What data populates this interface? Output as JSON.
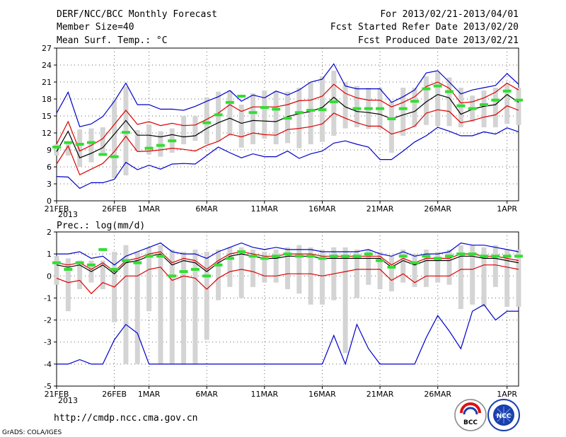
{
  "header": {
    "title": "DERF/NCC/BCC Monthly Forecast",
    "member_size": "Member Size=40",
    "variable": "Mean Surf. Temp.: °C",
    "period": "For 2013/02/21-2013/04/01",
    "started": "Fcst Started Refer Date 2013/02/20",
    "produced": "Fcst Produced Date 2013/02/21"
  },
  "footer": {
    "url": "http://cmdp.ncc.cma.gov.cn",
    "grads": "GrADS: COLA/IGES",
    "logo1": "BCC",
    "logo2": "NCC"
  },
  "colors": {
    "envelope": "#0000cc",
    "spread": "#dd0000",
    "mean": "#000000",
    "box": "#d4d4d4",
    "median": "#33dd33"
  },
  "chart_data": [
    {
      "type": "line",
      "title": "Mean Surf. Temp.: °C",
      "ylim": [
        0,
        27
      ],
      "yticks": [
        0,
        3,
        6,
        9,
        12,
        15,
        18,
        21,
        24,
        27
      ],
      "xlim": [
        0,
        40
      ],
      "xticks": [
        {
          "x": 0,
          "label": "21FEB"
        },
        {
          "x": 5,
          "label": "26FEB"
        },
        {
          "x": 8,
          "label": "1MAR"
        },
        {
          "x": 13,
          "label": "6MAR"
        },
        {
          "x": 18,
          "label": "11MAR"
        },
        {
          "x": 23,
          "label": "16MAR"
        },
        {
          "x": 28,
          "label": "21MAR"
        },
        {
          "x": 33,
          "label": "26MAR"
        },
        {
          "x": 39,
          "label": "1APR"
        }
      ],
      "xsublabel": "2013",
      "max": [
        15.5,
        19.2,
        13.1,
        13.6,
        14.9,
        17.6,
        20.8,
        17,
        17,
        16.2,
        16.2,
        16,
        16.7,
        17.6,
        18.4,
        19.5,
        17.6,
        18.7,
        18.2,
        19.4,
        18.7,
        19.6,
        21,
        21.5,
        24.2,
        20.3,
        19.8,
        19.8,
        19.8,
        17.4,
        18.4,
        19.6,
        22.6,
        23,
        21,
        18.9,
        19.6,
        20,
        20.4,
        22.5,
        20.6
      ],
      "upper": [
        10,
        14,
        8.8,
        9.8,
        11,
        13.5,
        16,
        13.5,
        14,
        13.3,
        13.7,
        13.3,
        13.4,
        14.4,
        15.5,
        17,
        15.8,
        16.6,
        16.6,
        16.6,
        17,
        17.7,
        17.8,
        18.5,
        20.6,
        19,
        18.2,
        17.8,
        17.8,
        16.6,
        17.4,
        18.4,
        20.2,
        21,
        19.9,
        17.3,
        17.5,
        18.2,
        19.2,
        20.8,
        19.6
      ],
      "mean": [
        8.7,
        12.3,
        7.6,
        8.4,
        9.4,
        11.8,
        14.2,
        11.6,
        11.6,
        11.3,
        11.7,
        11.3,
        11.5,
        12.8,
        13.8,
        14.6,
        13.7,
        14.2,
        14.1,
        14,
        14.9,
        15.4,
        15.8,
        16.5,
        18.3,
        16.6,
        15.8,
        15.6,
        15.3,
        14.5,
        15.2,
        15.8,
        17.5,
        18.8,
        18.2,
        15.3,
        16.2,
        16.7,
        17,
        18.8,
        17.4
      ],
      "lower": [
        6.5,
        9.7,
        4.6,
        5.6,
        6.6,
        8.7,
        11.4,
        8.7,
        8.8,
        9,
        9.3,
        9.1,
        8.8,
        9.8,
        10.5,
        11.8,
        11.3,
        12,
        11.7,
        11.6,
        12.6,
        12.8,
        13.1,
        13.6,
        15.5,
        14.6,
        13.8,
        13.2,
        13.2,
        11.8,
        12.4,
        13.2,
        15.5,
        16.1,
        15.8,
        13.8,
        14.2,
        14.8,
        15.2,
        16.8,
        16
      ],
      "min": [
        4.3,
        4.2,
        2.2,
        3.2,
        3.2,
        3.8,
        6.8,
        5.5,
        6.3,
        5.6,
        6.5,
        6.6,
        6.5,
        8,
        9.5,
        8.5,
        7.6,
        8.3,
        7.8,
        7.8,
        8.8,
        7.5,
        8.3,
        8.8,
        10.2,
        10.6,
        10,
        9.5,
        7.3,
        7.3,
        8.8,
        10.4,
        11.5,
        13,
        12.3,
        11.5,
        11.5,
        12.2,
        11.8,
        12.9,
        12.2
      ],
      "box_high": [
        10,
        10.5,
        12.6,
        12.8,
        13,
        17.8,
        20.2,
        12.5,
        13.5,
        12.3,
        12.8,
        15,
        15,
        18.3,
        19.3,
        19.5,
        17,
        19,
        19.5,
        19.4,
        19.3,
        20,
        21,
        22,
        23,
        21,
        20.3,
        20,
        20,
        17.5,
        20,
        20,
        22,
        22.8,
        21.8,
        20,
        18.6,
        19.5,
        20,
        20.6,
        20
      ],
      "box_low": [
        8,
        8,
        6,
        6.8,
        8.5,
        4,
        4.5,
        8.8,
        8.2,
        7.8,
        8.5,
        10,
        10.6,
        10,
        10.5,
        11.5,
        9.4,
        10,
        11,
        10,
        10.2,
        9.3,
        10,
        10.4,
        11.5,
        12.8,
        13,
        12.7,
        12.7,
        8.5,
        11.5,
        13,
        13.4,
        13.2,
        13.2,
        13,
        14,
        13,
        13,
        13.6,
        13.4
      ],
      "median": [
        9.5,
        10.3,
        10,
        10.3,
        8.2,
        7.8,
        12.1,
        null,
        9.3,
        9.8,
        10.6,
        null,
        null,
        13.8,
        15.2,
        17.4,
        18.5,
        15.6,
        16.5,
        16.2,
        14.6,
        15.6,
        16,
        16.1,
        17.5,
        null,
        16.3,
        16.3,
        16.3,
        14.5,
        16.3,
        17.6,
        19.8,
        20.3,
        19.3,
        16.8,
        16.3,
        17,
        17.8,
        19.4,
        17.8
      ]
    },
    {
      "type": "line",
      "title": "Prec.: log(mm/d)",
      "ylim": [
        -5,
        2
      ],
      "yticks": [
        -5,
        -4,
        -3,
        -2,
        -1,
        0,
        1,
        2
      ],
      "xlim": [
        0,
        40
      ],
      "xticks": [
        {
          "x": 0,
          "label": "21FEB"
        },
        {
          "x": 5,
          "label": "26FEB"
        },
        {
          "x": 8,
          "label": "1MAR"
        },
        {
          "x": 13,
          "label": "6MAR"
        },
        {
          "x": 18,
          "label": "11MAR"
        },
        {
          "x": 23,
          "label": "16MAR"
        },
        {
          "x": 28,
          "label": "21MAR"
        },
        {
          "x": 33,
          "label": "26MAR"
        },
        {
          "x": 39,
          "label": "1APR"
        }
      ],
      "xsublabel": "2013",
      "max": [
        1,
        1,
        1.1,
        0.8,
        0.9,
        0.5,
        0.9,
        1.1,
        1.3,
        1.5,
        1.1,
        1,
        1,
        0.8,
        1.1,
        1.3,
        1.5,
        1.3,
        1.2,
        1.3,
        1.2,
        1.2,
        1.2,
        1.1,
        1.1,
        1.1,
        1.1,
        1.2,
        1,
        0.9,
        1.1,
        0.9,
        1,
        1,
        1.1,
        1.5,
        1.4,
        1.4,
        1.3,
        1.2,
        1.1
      ],
      "upper": [
        0.6,
        0.5,
        0.6,
        0.3,
        0.6,
        0.2,
        0.7,
        0.8,
        1,
        1.1,
        0.6,
        0.8,
        0.7,
        0.3,
        0.7,
        1,
        1.1,
        1,
        0.9,
        0.9,
        1,
        1,
        1,
        0.9,
        0.9,
        0.9,
        0.9,
        0.9,
        0.9,
        0.5,
        0.8,
        0.6,
        0.8,
        0.8,
        0.8,
        1,
        1,
        0.9,
        0.9,
        0.8,
        0.7
      ],
      "mean": [
        0.5,
        0.4,
        0.5,
        0.2,
        0.5,
        0.1,
        0.6,
        0.7,
        0.9,
        1,
        0.5,
        0.7,
        0.6,
        0.2,
        0.6,
        0.9,
        1,
        0.9,
        0.8,
        0.8,
        0.9,
        0.9,
        0.9,
        0.8,
        0.8,
        0.8,
        0.8,
        0.8,
        0.8,
        0.4,
        0.7,
        0.5,
        0.7,
        0.7,
        0.7,
        0.9,
        0.9,
        0.8,
        0.8,
        0.7,
        0.6
      ],
      "lower": [
        -0.1,
        -0.3,
        -0.2,
        -0.8,
        -0.3,
        -0.5,
        0,
        0,
        0.3,
        0.4,
        -0.2,
        0,
        -0.1,
        -0.6,
        -0.1,
        0.2,
        0.3,
        0.2,
        0,
        0,
        0.1,
        0.1,
        0.1,
        0,
        0.1,
        0.2,
        0.3,
        0.3,
        0.3,
        -0.2,
        0.1,
        -0.3,
        0,
        0,
        0,
        0.3,
        0.3,
        0.5,
        0.5,
        0.4,
        0.3
      ],
      "min": [
        -4,
        -4,
        -3.8,
        -4,
        -4,
        -2.9,
        -2.2,
        -2.6,
        -4,
        -4,
        -4,
        -4,
        -4,
        -4,
        -4,
        -4,
        -4,
        -4,
        -4,
        -4,
        -4,
        -4,
        -4,
        -4,
        -2.7,
        -4,
        -2.2,
        -3.3,
        -4,
        -4,
        -4,
        -4,
        -2.8,
        -1.8,
        -2.5,
        -3.3,
        -1.6,
        -1.3,
        -2,
        -1.6,
        -1.6
      ],
      "box_high": [
        0.9,
        0.8,
        0.7,
        0.7,
        0.7,
        1.1,
        1.4,
        1.1,
        1.3,
        1.4,
        1.2,
        1.1,
        1.2,
        1.1,
        1.2,
        1.3,
        1.3,
        1.2,
        1.1,
        1.2,
        1.3,
        1.4,
        1.3,
        1.2,
        1.3,
        1.3,
        1.2,
        1.2,
        1.1,
        0.9,
        1.2,
        1,
        1.2,
        1.1,
        1.2,
        1.4,
        1.4,
        1.3,
        1.4,
        1.2,
        1.2
      ],
      "box_low": [
        -0.4,
        -1.6,
        -0.6,
        -0.3,
        -0.6,
        -2.1,
        -4,
        -4,
        -1.6,
        -4,
        -4,
        -4,
        -4,
        -2.9,
        -1.1,
        -0.5,
        -1,
        -0.5,
        -0.3,
        -0.3,
        -0.6,
        -0.8,
        -1.3,
        -1.3,
        -1.1,
        -3.5,
        -1,
        -0.4,
        -0.6,
        -0.7,
        -0.3,
        -0.5,
        -0.5,
        -0.3,
        -0.4,
        -1.5,
        -1.3,
        -1.4,
        -0.5,
        -1.4,
        -1.4
      ],
      "median": [
        0.6,
        0.3,
        0.6,
        0.5,
        1.2,
        0.3,
        0.7,
        0.6,
        0.9,
        0.9,
        0,
        0.2,
        0.3,
        0,
        0.5,
        0.8,
        1.1,
        0.9,
        0.8,
        0.9,
        1,
        0.9,
        0.9,
        0.8,
        0.9,
        0.9,
        0.9,
        1,
        0.7,
        0.4,
        0.9,
        0.6,
        0.9,
        0.8,
        0.9,
        1,
        1,
        0.9,
        0.9,
        0.9,
        0.9
      ]
    }
  ]
}
